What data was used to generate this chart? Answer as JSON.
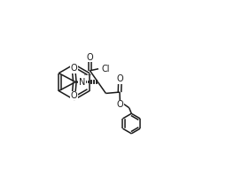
{
  "background": "#ffffff",
  "line_color": "#1a1a1a",
  "line_width": 1.1,
  "font_size": 7.0,
  "xlim": [
    0,
    10
  ],
  "ylim": [
    0,
    6.8
  ]
}
